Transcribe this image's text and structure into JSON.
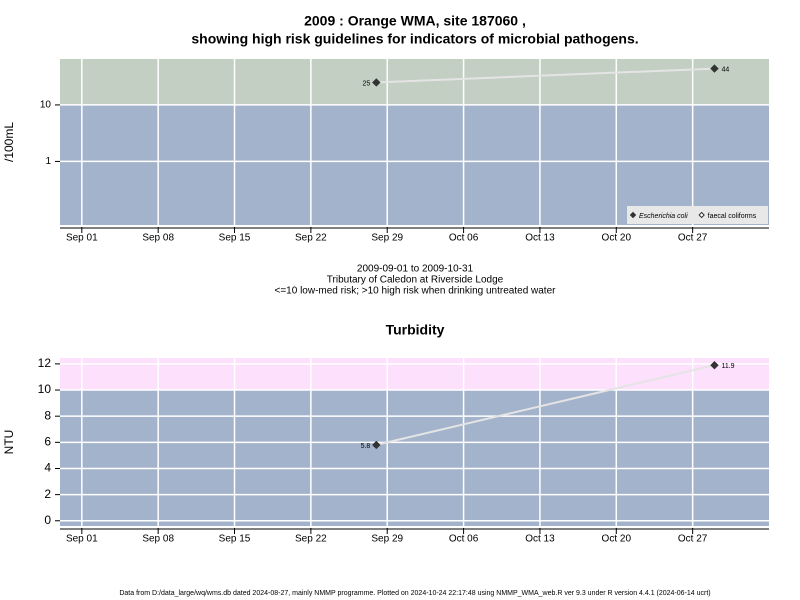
{
  "chart_data": [
    {
      "type": "line",
      "title": "2009 : Orange WMA, site 187060 ,",
      "subtitle": "showing high risk guidelines for indicators of microbial pathogens.",
      "ylabel": "/100mL",
      "log_scale": true,
      "x": [
        "Sep 28",
        "Oct 29"
      ],
      "series": [
        {
          "name": "Escherichia coli",
          "color": "#333333",
          "marker": "filled",
          "values": [
            25,
            44
          ]
        },
        {
          "name": "faecal coliforms",
          "color": "#333333",
          "marker": "open",
          "values": [
            null,
            null
          ]
        }
      ],
      "line_color": "#e4e4e4",
      "xlim": [
        "Aug 30",
        "Nov 03"
      ],
      "xticks": [
        "Sep 01",
        "Sep 08",
        "Sep 15",
        "Sep 22",
        "Sep 29",
        "Oct 06",
        "Oct 13",
        "Oct 20",
        "Oct 27"
      ],
      "ylim": [
        0.075,
        65
      ],
      "yticks": [
        1,
        10
      ],
      "threshold": 10,
      "band_colors": [
        "#a3b3cb",
        "#c3cfc3"
      ],
      "grid": true,
      "legend": "bottom-right",
      "notes": [
        "2009-09-01 to 2009-10-31",
        "Tributary of Caledon at Riverside Lodge",
        "<=10 low-med risk; >10 high risk when drinking untreated water"
      ]
    },
    {
      "type": "line",
      "title": "Turbidity",
      "ylabel": "NTU",
      "log_scale": false,
      "x": [
        "Sep 28",
        "Oct 29"
      ],
      "series": [
        {
          "color": "#333333",
          "marker": "filled",
          "values": [
            5.8,
            11.9
          ]
        }
      ],
      "line_color": "#e4e4e4",
      "xlim": [
        "Aug 30",
        "Nov 03"
      ],
      "xticks": [
        "Sep 01",
        "Sep 08",
        "Sep 15",
        "Sep 22",
        "Sep 29",
        "Oct 06",
        "Oct 13",
        "Oct 20",
        "Oct 27"
      ],
      "ylim": [
        -0.4,
        12.45
      ],
      "yticks": [
        0,
        2,
        4,
        6,
        8,
        10,
        12
      ],
      "threshold": 10,
      "band_colors": [
        "#a3b3cb",
        "#fce0fc"
      ],
      "grid": true
    }
  ],
  "footer": "Data from D:/data_large/wq/wms.db dated 2024-08-27, mainly NMMP programme. Plotted on 2024-10-24 22:17:48 using NMMP_WMA_web.R ver 9.3 under R version 4.4.1 (2024-06-14 ucrt)"
}
